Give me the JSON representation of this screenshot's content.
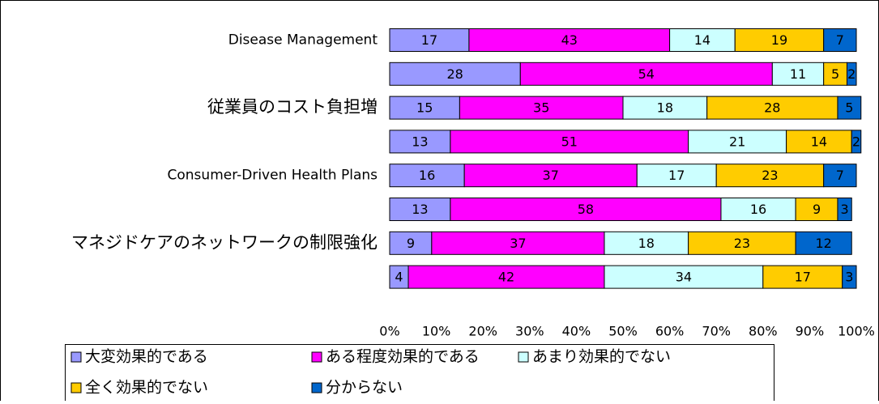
{
  "chart_data": {
    "type": "stacked-barh",
    "categories": [
      "Disease Management",
      null,
      "従業員のコスト負担増",
      null,
      "Consumer-Driven Health Plans",
      null,
      "マネジドケアのネットワークの制限強化",
      null
    ],
    "series": [
      {
        "name": "大変効果的である",
        "color": "#9999ff",
        "values": [
          17,
          28,
          15,
          13,
          16,
          13,
          9,
          4
        ]
      },
      {
        "name": "ある程度効果的である",
        "color": "#ff00ff",
        "values": [
          43,
          54,
          35,
          51,
          37,
          58,
          37,
          42
        ]
      },
      {
        "name": "あまり効果的でない",
        "color": "#ccffff",
        "values": [
          14,
          11,
          18,
          21,
          17,
          16,
          18,
          34
        ]
      },
      {
        "name": "全く効果的でない",
        "color": "#ffcc00",
        "values": [
          19,
          5,
          28,
          14,
          23,
          9,
          23,
          17
        ]
      },
      {
        "name": "分からない",
        "color": "#0066cc",
        "values": [
          7,
          2,
          5,
          2,
          7,
          3,
          12,
          3
        ]
      }
    ],
    "xlim": [
      0,
      100
    ],
    "xticks": [
      {
        "value": 0,
        "label": "0%"
      },
      {
        "value": 10,
        "label": "10%"
      },
      {
        "value": 20,
        "label": "20%"
      },
      {
        "value": 30,
        "label": "30%"
      },
      {
        "value": 40,
        "label": "40%"
      },
      {
        "value": 50,
        "label": "50%"
      },
      {
        "value": 60,
        "label": "60%"
      },
      {
        "value": 70,
        "label": "70%"
      },
      {
        "value": 80,
        "label": "80%"
      },
      {
        "value": 90,
        "label": "90%"
      },
      {
        "value": 100,
        "label": "100%"
      }
    ]
  }
}
